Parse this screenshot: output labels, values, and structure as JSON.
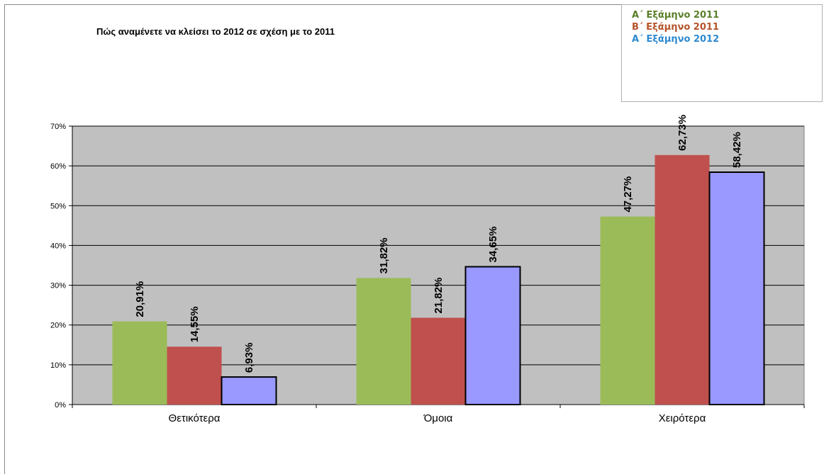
{
  "chart_data": {
    "type": "bar",
    "title": "Πώς αναμένετε να κλείσει το 2012 σε σχέση με το 2011",
    "categories": [
      "Θετικότερα",
      "Όμοια",
      "Χειρότερα"
    ],
    "series": [
      {
        "name": "Α΄ Εξάμηνο 2011",
        "color": "#9bbb59",
        "values": [
          20.91,
          31.82,
          47.27
        ],
        "labels": [
          "20,91%",
          "31,82%",
          "47,27%"
        ],
        "outlined": false
      },
      {
        "name": "Β΄ Εξάμηνο 2011",
        "color": "#c0504d",
        "values": [
          14.55,
          21.82,
          62.73
        ],
        "labels": [
          "14,55%",
          "21,82%",
          "62,73%"
        ],
        "outlined": false
      },
      {
        "name": "Α΄ Εξάμηνο 2012",
        "color": "#9999ff",
        "values": [
          6.93,
          34.65,
          58.42
        ],
        "labels": [
          "6,93%",
          "34,65%",
          "58,42%"
        ],
        "outlined": true
      }
    ],
    "legend_colors": [
      "#5a7f2a",
      "#b5542a",
      "#2e8ad0"
    ],
    "ylim": [
      0,
      70
    ],
    "yticks": [
      0,
      10,
      20,
      30,
      40,
      50,
      60,
      70
    ],
    "ytick_labels": [
      "0%",
      "10%",
      "20%",
      "30%",
      "40%",
      "50%",
      "60%",
      "70%"
    ],
    "plot_background": "#c0c0c0",
    "grid": true,
    "legend_position": "top-right",
    "xlabel": "",
    "ylabel": ""
  }
}
